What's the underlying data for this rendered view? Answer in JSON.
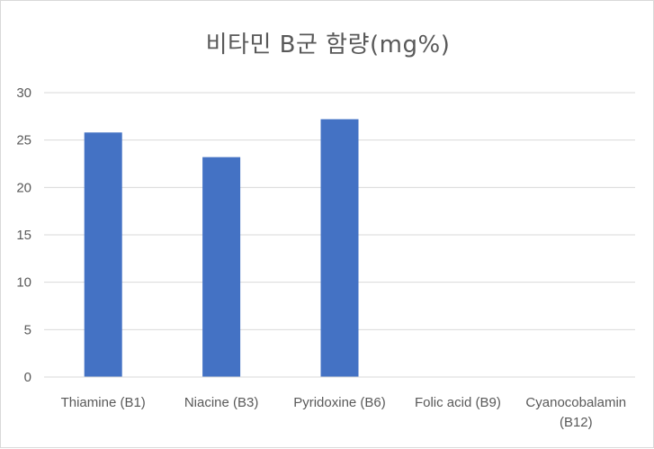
{
  "chart_data": {
    "type": "bar",
    "title": "비타민 B군 함량(mg%)",
    "categories": [
      "Thiamine (B1)",
      "Niacine (B3)",
      "Pyridoxine (B6)",
      "Folic acid (B9)",
      "Cyanocobalamin (B12)"
    ],
    "category_lines": [
      [
        "Thiamine (B1)"
      ],
      [
        "Niacine (B3)"
      ],
      [
        "Pyridoxine (B6)"
      ],
      [
        "Folic acid (B9)"
      ],
      [
        "Cyanocobalamin",
        "(B12)"
      ]
    ],
    "values": [
      25.8,
      23.2,
      27.2,
      0,
      0
    ],
    "ylim": [
      0,
      30
    ],
    "yticks": [
      0,
      5,
      10,
      15,
      20,
      25,
      30
    ],
    "xlabel": "",
    "ylabel": "",
    "grid": true,
    "legend": "none",
    "bar_color": "#4472c4",
    "grid_color": "#d9d9d9",
    "text_color": "#595959"
  }
}
